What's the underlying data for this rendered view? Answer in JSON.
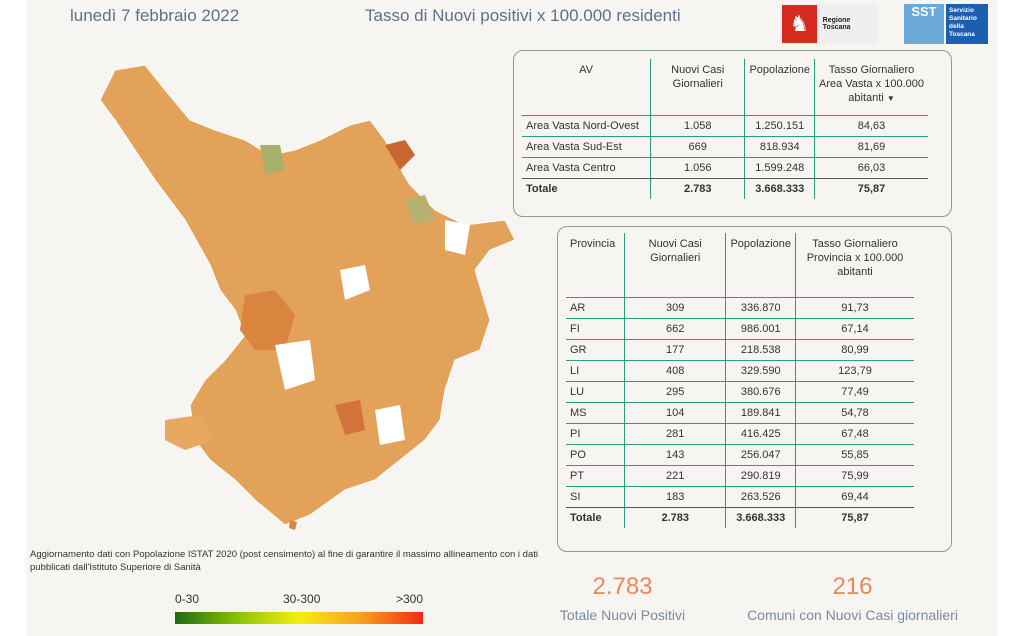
{
  "header": {
    "date": "lunedì 7 febbraio 2022",
    "title": "Tasso di Nuovi positivi x 100.000 residenti",
    "logo_regione": "Regione Toscana",
    "logo_sst": "SST",
    "logo_sst_text": "Servizio Sanitario della Toscana"
  },
  "av_table": {
    "headers": [
      "AV",
      "Nuovi Casi Giornalieri",
      "Popolazione",
      "Tasso Giornaliero Area Vasta x 100.000 abitanti"
    ],
    "rows": [
      [
        "Area Vasta Nord-Ovest",
        "1.058",
        "1.250.151",
        "84,63"
      ],
      [
        "Area Vasta Sud-Est",
        "669",
        "818.934",
        "81,69"
      ],
      [
        "Area Vasta Centro",
        "1.056",
        "1.599.248",
        "66,03"
      ]
    ],
    "total": [
      "Totale",
      "2.783",
      "3.668.333",
      "75,87"
    ],
    "sort_icon": "sort-desc-icon"
  },
  "prov_table": {
    "headers": [
      "Provincia",
      "Nuovi Casi Giornalieri",
      "Popolazione",
      "Tasso Giornaliero Provincia x 100.000 abitanti"
    ],
    "rows": [
      [
        "AR",
        "309",
        "336.870",
        "91,73"
      ],
      [
        "FI",
        "662",
        "986.001",
        "67,14"
      ],
      [
        "GR",
        "177",
        "218.538",
        "80,99"
      ],
      [
        "LI",
        "408",
        "329.590",
        "123,79"
      ],
      [
        "LU",
        "295",
        "380.676",
        "77,49"
      ],
      [
        "MS",
        "104",
        "189.841",
        "54,78"
      ],
      [
        "PI",
        "281",
        "416.425",
        "67,48"
      ],
      [
        "PO",
        "143",
        "256.047",
        "55,85"
      ],
      [
        "PT",
        "221",
        "290.819",
        "75,99"
      ],
      [
        "SI",
        "183",
        "263.526",
        "69,44"
      ]
    ],
    "total": [
      "Totale",
      "2.783",
      "3.668.333",
      "75,87"
    ]
  },
  "note": "Aggiornamento dati con Popolazione ISTAT 2020 (post censimento) al fine di garantire il massimo allineamento con i dati pubblicati dall'Istituto Superiore di Sanità",
  "legend": {
    "low": "0-30",
    "mid": "30-300",
    "high": ">300",
    "colors": [
      "#1e6b13",
      "#f5ef10",
      "#f42a10"
    ]
  },
  "stats": {
    "total_value": "2.783",
    "total_label": "Totale Nuovi Positivi",
    "comuni_value": "216",
    "comuni_label": "Comuni con Nuovi Casi giornalieri"
  }
}
